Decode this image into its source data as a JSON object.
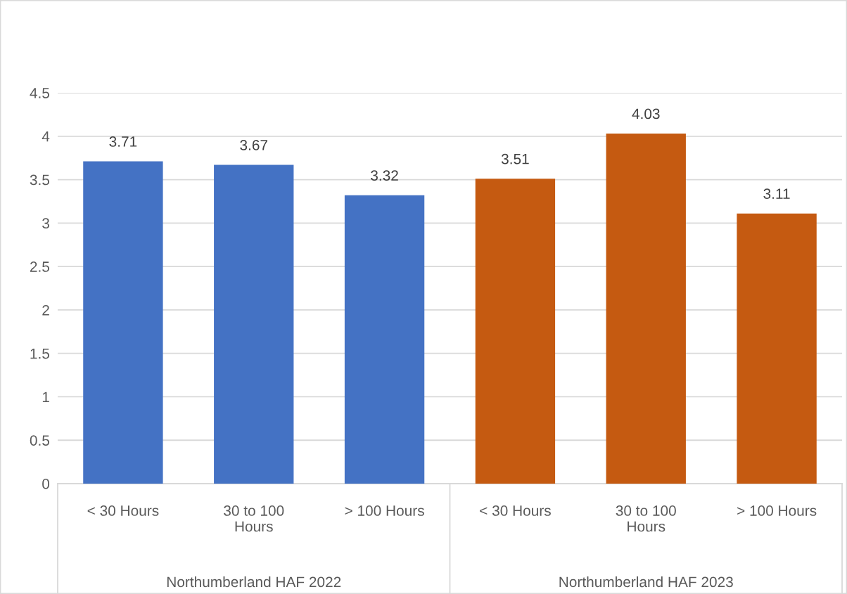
{
  "chart_data": {
    "type": "bar",
    "categories": [
      "< 30 Hours",
      "30 to 100\nHours",
      "> 100 Hours",
      "< 30 Hours",
      "30 to 100\nHours",
      "> 100 Hours"
    ],
    "values": [
      3.71,
      3.67,
      3.32,
      3.51,
      4.03,
      3.11
    ],
    "colors": [
      "#4472c4",
      "#4472c4",
      "#4472c4",
      "#c55a11",
      "#c55a11",
      "#c55a11"
    ],
    "annotations": [
      "Northumberland HAF 2022",
      "Northumberland HAF 2023"
    ],
    "ylim": [
      0,
      4.5
    ],
    "yticks": [
      0,
      0.5,
      1,
      1.5,
      2,
      2.5,
      3,
      3.5,
      4,
      4.5
    ],
    "grid": "y",
    "data_labels": true
  }
}
